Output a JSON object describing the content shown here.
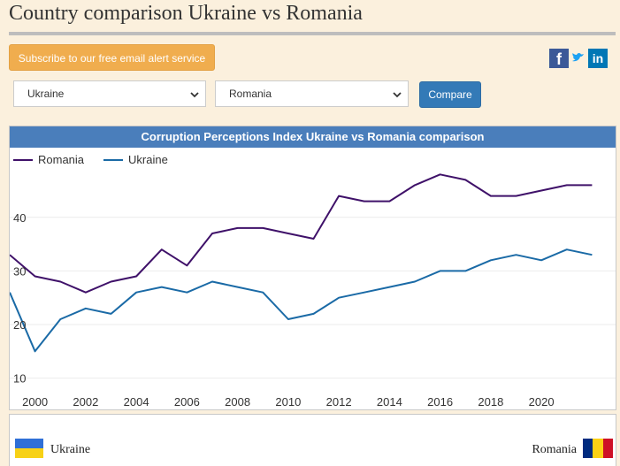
{
  "page": {
    "title": "Country comparison Ukraine vs Romania"
  },
  "subscribe": {
    "label": "Subscribe to our free email alert service"
  },
  "social": {
    "facebook": "f",
    "twitter": "t",
    "linkedin": "in"
  },
  "selects": {
    "country1": "Ukraine",
    "country2": "Romania"
  },
  "compare": {
    "label": "Compare"
  },
  "footer": {
    "left_country": "Ukraine",
    "right_country": "Romania"
  },
  "colors": {
    "romania": "#3f1169",
    "ukraine": "#1a6aa6",
    "header": "#4a7ebb",
    "button": "#337ab7",
    "subscribe": "#f0ad4e"
  },
  "chart_data": {
    "type": "line",
    "title": "Corruption Perceptions Index Ukraine vs Romania comparison",
    "x": [
      1999,
      2000,
      2001,
      2002,
      2003,
      2004,
      2005,
      2006,
      2007,
      2008,
      2009,
      2010,
      2011,
      2012,
      2013,
      2014,
      2015,
      2016,
      2017,
      2018,
      2019,
      2020,
      2021,
      2022
    ],
    "x_ticks": [
      2000,
      2002,
      2004,
      2006,
      2008,
      2010,
      2012,
      2014,
      2016,
      2018,
      2020
    ],
    "y_ticks": [
      10,
      20,
      30,
      40
    ],
    "xlim": [
      1999,
      2023
    ],
    "ylim": [
      4,
      53
    ],
    "series": [
      {
        "name": "Romania",
        "values": [
          33,
          29,
          28,
          26,
          28,
          29,
          34,
          31,
          37,
          38,
          38,
          37,
          36,
          44,
          43,
          43,
          46,
          48,
          47,
          44,
          44,
          45,
          46,
          46
        ]
      },
      {
        "name": "Ukraine",
        "values": [
          26,
          15,
          21,
          23,
          22,
          26,
          27,
          26,
          28,
          27,
          26,
          21,
          22,
          25,
          26,
          27,
          28,
          30,
          30,
          32,
          33,
          32,
          34,
          33
        ]
      }
    ],
    "legend": "top-left"
  }
}
